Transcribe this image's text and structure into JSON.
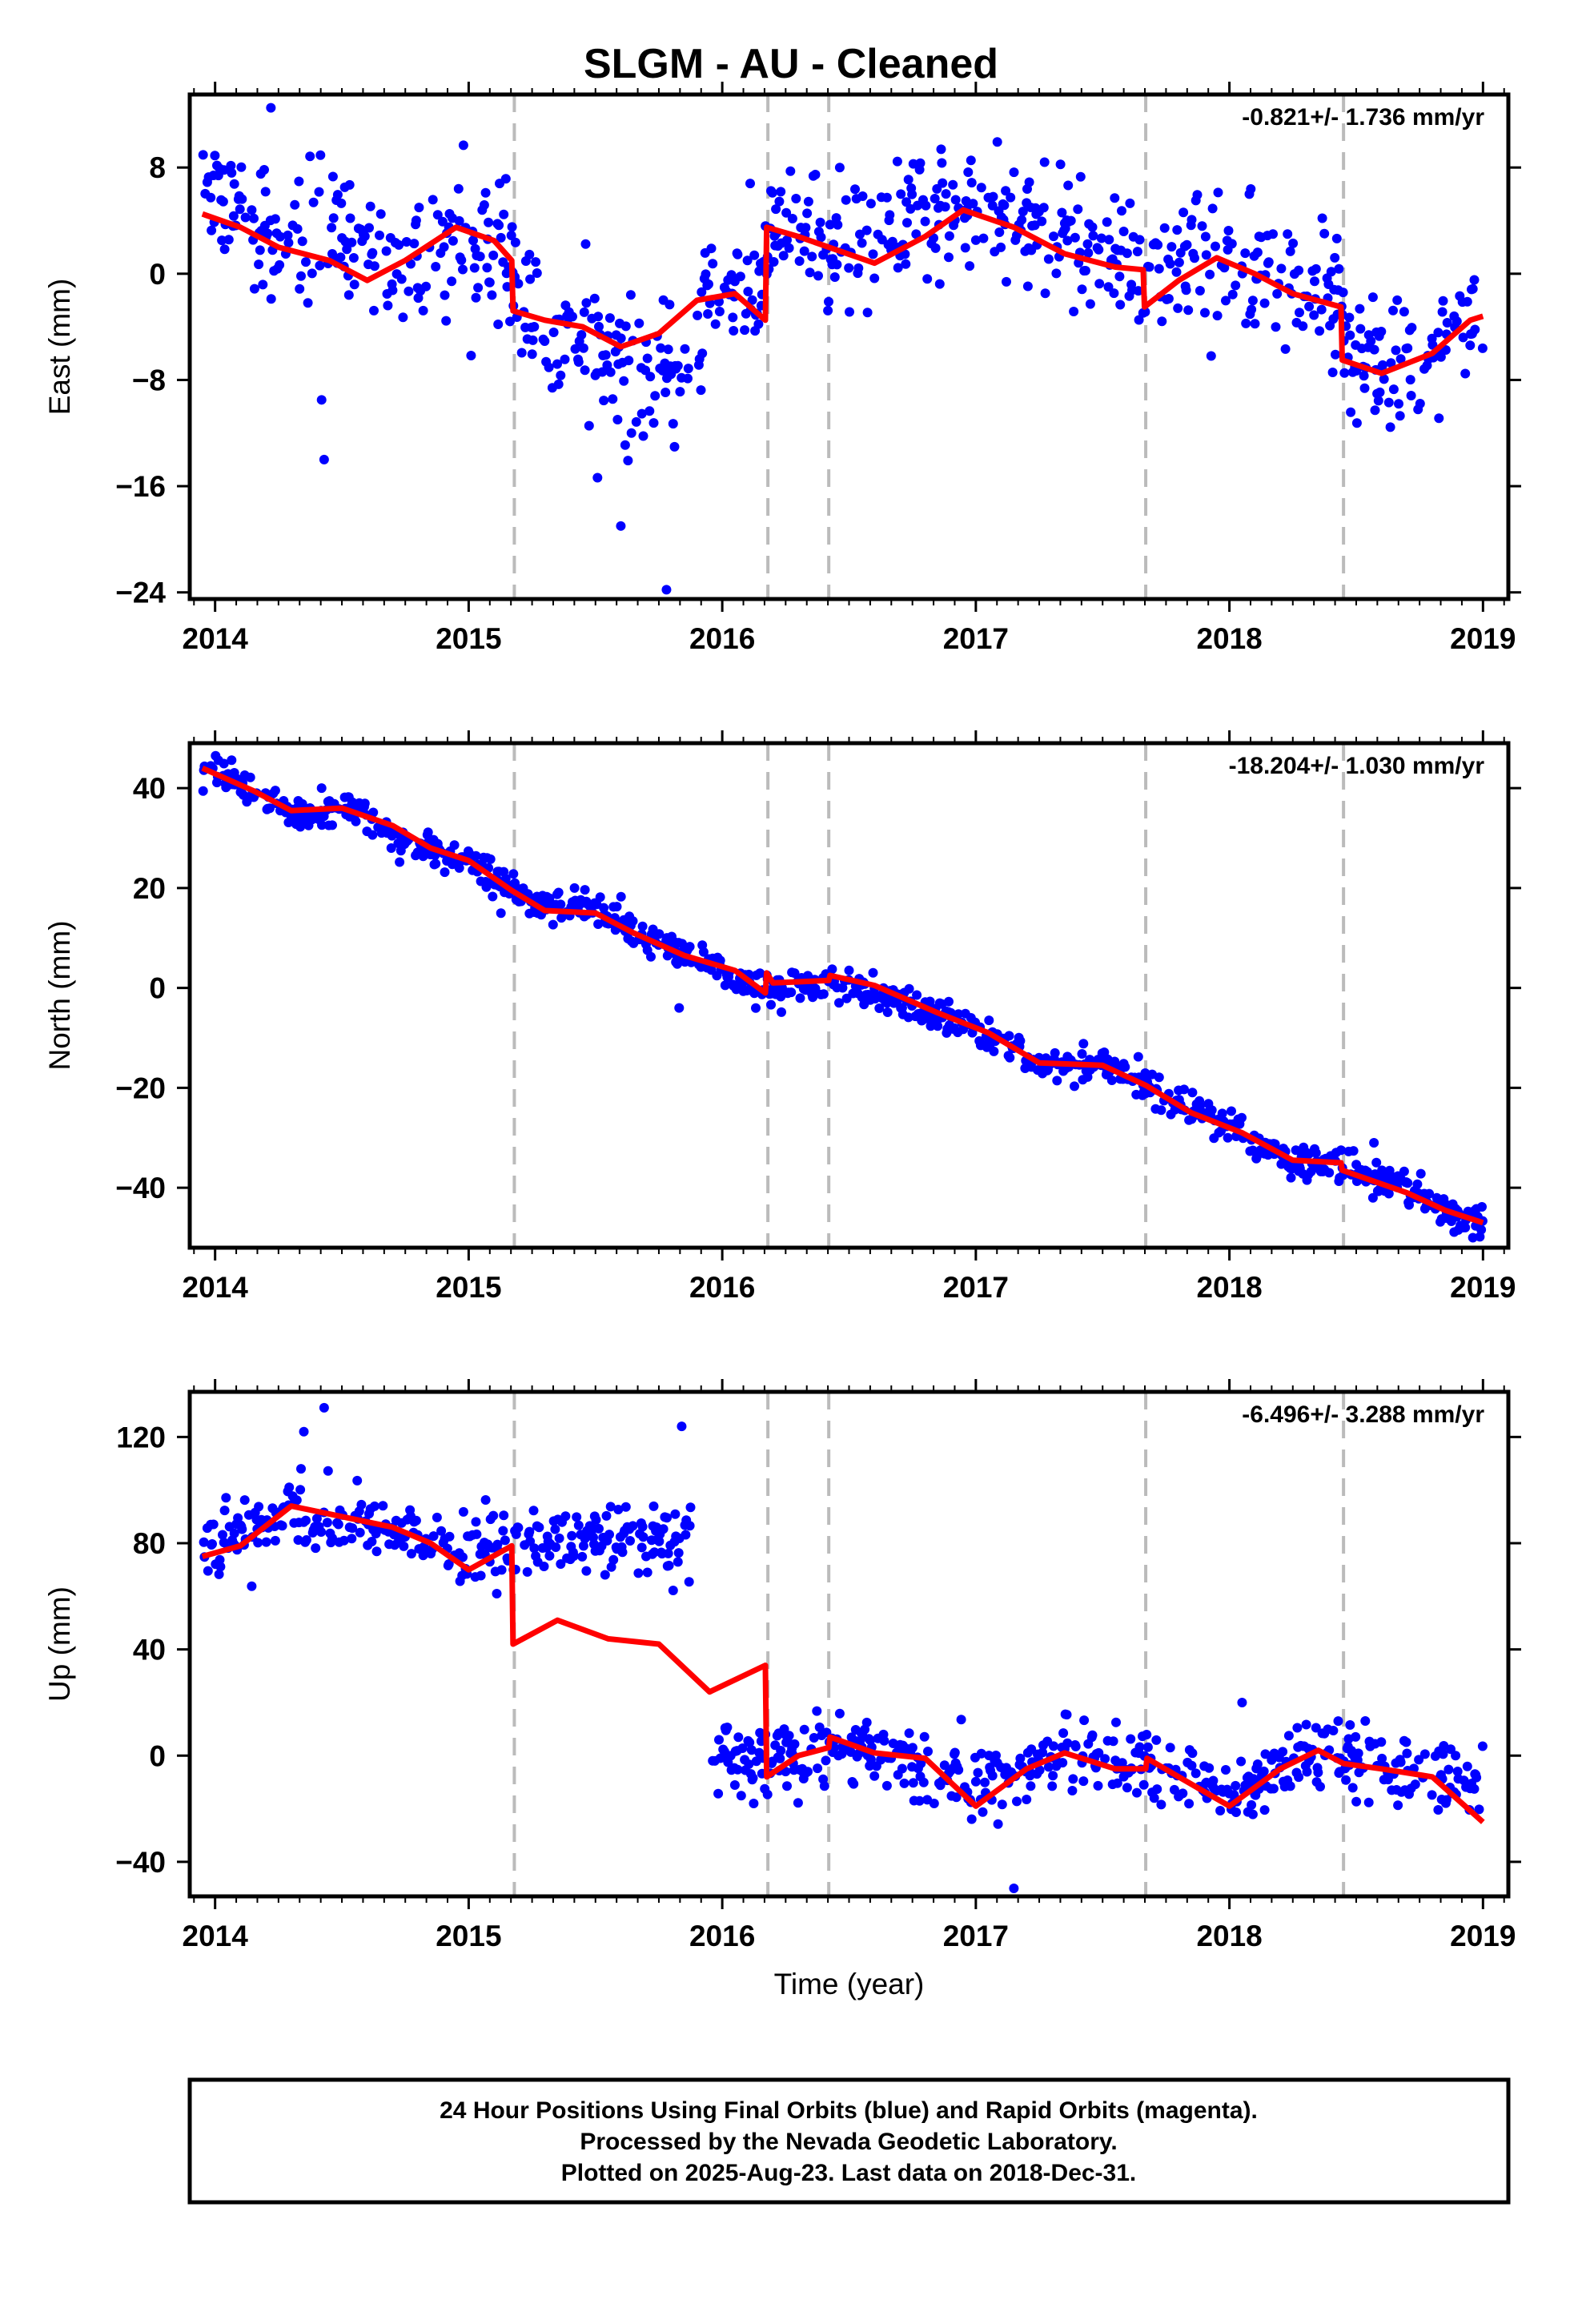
{
  "title": "SLGM  - AU - Cleaned",
  "footer": {
    "lines": [
      "24 Hour Positions Using Final Orbits (blue) and Rapid Orbits (magenta).",
      "Processed by the Nevada Geodetic Laboratory.",
      "Plotted on 2025-Aug-23. Last data on 2018-Dec-31."
    ]
  },
  "colors": {
    "data": "#0000ff",
    "model": "#ff0000",
    "breaks": "#bbbbbb",
    "frame": "#000000"
  },
  "chart_data": [
    {
      "type": "scatter",
      "component": "East",
      "ylabel": "East (mm)",
      "xlabel": "",
      "rate_label": "-0.821+/- 1.736 mm/yr",
      "xlim": [
        2013.9,
        2019.1
      ],
      "ylim": [
        -24.5,
        13.5
      ],
      "xticks": [
        2014,
        2015,
        2016,
        2017,
        2018,
        2019
      ],
      "xtick_labels": [
        "2014",
        "2015",
        "2016",
        "2017",
        "2018",
        "2019"
      ],
      "yticks": [
        -24,
        -16,
        -8,
        0,
        8
      ],
      "ytick_labels": [
        "−24",
        "−16",
        "−8",
        "0",
        "8"
      ],
      "breaks": [
        2015.18,
        2016.18,
        2016.42,
        2017.67,
        2018.45
      ],
      "data_density": 0.45,
      "series": [
        {
          "role": "observations",
          "gap_after": [
            2015.88,
            2015.95
          ],
          "trend": [
            [
              2013.95,
              6.5
            ],
            [
              2014.2,
              3.5
            ],
            [
              2014.5,
              1.5
            ],
            [
              2014.8,
              1.0
            ],
            [
              2015.0,
              3.0
            ],
            [
              2015.17,
              1.0
            ],
            [
              2015.19,
              -3.5
            ],
            [
              2015.5,
              -6.5
            ],
            [
              2015.85,
              -8.5
            ],
            [
              2015.96,
              -1.0
            ],
            [
              2016.17,
              -2.0
            ],
            [
              2016.19,
              3.5
            ],
            [
              2016.42,
              1.5
            ],
            [
              2016.9,
              5.0
            ],
            [
              2017.4,
              2.5
            ],
            [
              2017.66,
              0.5
            ],
            [
              2017.68,
              0.0
            ],
            [
              2017.95,
              1.5
            ],
            [
              2018.44,
              -2.5
            ],
            [
              2018.46,
              -6.5
            ],
            [
              2018.7,
              -6.5
            ],
            [
              2019.0,
              -3.5
            ]
          ],
          "scatter_sd": 2.6,
          "outliers": [
            [
              2014.43,
              -14.0
            ],
            [
              2014.42,
              -9.5
            ],
            [
              2015.78,
              -23.8
            ],
            [
              2015.6,
              -19.0
            ],
            [
              2014.22,
              12.5
            ]
          ]
        }
      ],
      "model": [
        [
          2013.95,
          4.5
        ],
        [
          2014.1,
          3.5
        ],
        [
          2014.25,
          2.0
        ],
        [
          2014.45,
          1.0
        ],
        [
          2014.6,
          -0.5
        ],
        [
          2014.75,
          1.0
        ],
        [
          2014.95,
          3.5
        ],
        [
          2015.1,
          2.5
        ],
        [
          2015.17,
          1.0
        ],
        [
          2015.175,
          -2.8
        ],
        [
          2015.3,
          -3.5
        ],
        [
          2015.45,
          -4.0
        ],
        [
          2015.6,
          -5.5
        ],
        [
          2015.75,
          -4.5
        ],
        [
          2015.9,
          -2.0
        ],
        [
          2016.05,
          -1.5
        ],
        [
          2016.17,
          -3.5
        ],
        [
          2016.175,
          3.5
        ],
        [
          2016.3,
          2.8
        ],
        [
          2016.42,
          2.0
        ],
        [
          2016.6,
          0.8
        ],
        [
          2016.8,
          2.8
        ],
        [
          2016.95,
          4.8
        ],
        [
          2017.15,
          3.5
        ],
        [
          2017.35,
          1.5
        ],
        [
          2017.55,
          0.5
        ],
        [
          2017.66,
          0.3
        ],
        [
          2017.665,
          -2.5
        ],
        [
          2017.8,
          -0.5
        ],
        [
          2017.95,
          1.2
        ],
        [
          2018.1,
          0.0
        ],
        [
          2018.25,
          -1.5
        ],
        [
          2018.44,
          -2.5
        ],
        [
          2018.445,
          -6.5
        ],
        [
          2018.6,
          -7.5
        ],
        [
          2018.8,
          -6.0
        ],
        [
          2018.95,
          -3.5
        ],
        [
          2019.0,
          -3.2
        ]
      ]
    },
    {
      "type": "scatter",
      "component": "North",
      "ylabel": "North (mm)",
      "xlabel": "",
      "rate_label": "-18.204+/- 1.030 mm/yr",
      "xlim": [
        2013.9,
        2019.1
      ],
      "ylim": [
        -52,
        49
      ],
      "xticks": [
        2014,
        2015,
        2016,
        2017,
        2018,
        2019
      ],
      "xtick_labels": [
        "2014",
        "2015",
        "2016",
        "2017",
        "2018",
        "2019"
      ],
      "yticks": [
        -40,
        -20,
        0,
        20,
        40
      ],
      "ytick_labels": [
        "−40",
        "−20",
        "0",
        "20",
        "40"
      ],
      "breaks": [
        2015.18,
        2016.18,
        2016.42,
        2017.67,
        2018.45
      ],
      "data_density": 0.45,
      "series": [
        {
          "role": "observations",
          "gap_after": [],
          "trend": [
            [
              2013.95,
              45.0
            ],
            [
              2014.3,
              35.0
            ],
            [
              2014.55,
              35.5
            ],
            [
              2014.8,
              28.5
            ],
            [
              2015.1,
              23.0
            ],
            [
              2015.2,
              17.0
            ],
            [
              2015.5,
              15.5
            ],
            [
              2015.7,
              10.0
            ],
            [
              2016.0,
              4.0
            ],
            [
              2016.17,
              -1.0
            ],
            [
              2016.42,
              1.5
            ],
            [
              2017.0,
              -8.0
            ],
            [
              2017.25,
              -15.5
            ],
            [
              2017.55,
              -16.0
            ],
            [
              2017.8,
              -23.0
            ],
            [
              2018.0,
              -28.0
            ],
            [
              2018.25,
              -35.0
            ],
            [
              2018.45,
              -35.5
            ],
            [
              2018.7,
              -40.0
            ],
            [
              2019.0,
              -48.0
            ]
          ],
          "scatter_sd": 1.7,
          "outliers": [
            [
              2015.83,
              -4.0
            ],
            [
              2016.5,
              3.5
            ],
            [
              2018.57,
              -31.0
            ],
            [
              2014.42,
              40.0
            ],
            [
              2016.8,
              -4.0
            ]
          ]
        }
      ],
      "model": [
        [
          2013.95,
          44.0
        ],
        [
          2014.15,
          39.5
        ],
        [
          2014.3,
          35.5
        ],
        [
          2014.5,
          36.0
        ],
        [
          2014.7,
          32.5
        ],
        [
          2014.85,
          28.0
        ],
        [
          2015.0,
          25.5
        ],
        [
          2015.17,
          19.5
        ],
        [
          2015.3,
          15.5
        ],
        [
          2015.5,
          15.0
        ],
        [
          2015.65,
          11.0
        ],
        [
          2015.85,
          6.5
        ],
        [
          2016.05,
          3.5
        ],
        [
          2016.17,
          -1.0
        ],
        [
          2016.175,
          3.0
        ],
        [
          2016.2,
          1.0
        ],
        [
          2016.42,
          1.5
        ],
        [
          2016.425,
          2.5
        ],
        [
          2016.6,
          0.5
        ],
        [
          2016.85,
          -5.0
        ],
        [
          2017.05,
          -9.0
        ],
        [
          2017.25,
          -15.0
        ],
        [
          2017.5,
          -15.5
        ],
        [
          2017.67,
          -19.5
        ],
        [
          2017.85,
          -25.0
        ],
        [
          2018.05,
          -29.0
        ],
        [
          2018.25,
          -34.5
        ],
        [
          2018.44,
          -35.0
        ],
        [
          2018.445,
          -36.5
        ],
        [
          2018.7,
          -41.0
        ],
        [
          2018.85,
          -44.5
        ],
        [
          2019.0,
          -47.0
        ]
      ]
    },
    {
      "type": "scatter",
      "component": "Up",
      "ylabel": "Up (mm)",
      "xlabel": "Time (year)",
      "rate_label": "-6.496+/- 3.288 mm/yr",
      "xlim": [
        2013.9,
        2019.1
      ],
      "ylim": [
        -53,
        137
      ],
      "xticks": [
        2014,
        2015,
        2016,
        2017,
        2018,
        2019
      ],
      "xtick_labels": [
        "2014",
        "2015",
        "2016",
        "2017",
        "2018",
        "2019"
      ],
      "yticks": [
        -40,
        0,
        40,
        80,
        120
      ],
      "ytick_labels": [
        "−40",
        "0",
        "40",
        "80",
        "120"
      ],
      "breaks": [
        2015.18,
        2016.18,
        2016.42,
        2017.67,
        2018.45
      ],
      "data_density": 0.45,
      "series": [
        {
          "role": "observations",
          "gap_after": [
            2015.88,
            2015.85
          ],
          "trend": [
            [
              2013.95,
              78.0
            ],
            [
              2014.3,
              92.0
            ],
            [
              2014.7,
              85.0
            ],
            [
              2015.0,
              75.0
            ],
            [
              2015.17,
              80.0
            ],
            [
              2015.5,
              82.0
            ],
            [
              2015.88,
              80.0
            ],
            [
              2015.89,
              0.0
            ],
            [
              2016.17,
              -2.0
            ],
            [
              2016.42,
              3.0
            ],
            [
              2016.7,
              0.0
            ],
            [
              2017.0,
              -12.0
            ],
            [
              2017.35,
              0.0
            ],
            [
              2017.67,
              -4.0
            ],
            [
              2018.0,
              -14.0
            ],
            [
              2018.3,
              0.0
            ],
            [
              2018.7,
              -5.0
            ],
            [
              2019.0,
              -12.0
            ]
          ],
          "scatter_sd": 6.5,
          "outliers": [
            [
              2014.43,
              131.0
            ],
            [
              2014.35,
              122.0
            ],
            [
              2015.84,
              124.0
            ],
            [
              2017.15,
              -50.0
            ],
            [
              2018.05,
              20.0
            ]
          ]
        }
      ],
      "model": [
        [
          2013.95,
          75.0
        ],
        [
          2014.1,
          79.0
        ],
        [
          2014.3,
          94.0
        ],
        [
          2014.5,
          90.0
        ],
        [
          2014.7,
          86.0
        ],
        [
          2014.85,
          80.0
        ],
        [
          2015.0,
          70.0
        ],
        [
          2015.17,
          79.0
        ],
        [
          2015.175,
          42.0
        ],
        [
          2015.35,
          51.0
        ],
        [
          2015.55,
          44.0
        ],
        [
          2015.75,
          42.0
        ],
        [
          2015.95,
          24.0
        ],
        [
          2016.17,
          34.0
        ],
        [
          2016.175,
          -8.0
        ],
        [
          2016.3,
          0.0
        ],
        [
          2016.42,
          3.0
        ],
        [
          2016.425,
          7.0
        ],
        [
          2016.6,
          1.0
        ],
        [
          2016.8,
          -1.0
        ],
        [
          2017.0,
          -19.0
        ],
        [
          2017.2,
          -5.0
        ],
        [
          2017.35,
          1.0
        ],
        [
          2017.55,
          -5.0
        ],
        [
          2017.67,
          -5.0
        ],
        [
          2017.675,
          -1.0
        ],
        [
          2017.8,
          -8.0
        ],
        [
          2018.0,
          -19.0
        ],
        [
          2018.2,
          -5.0
        ],
        [
          2018.35,
          2.0
        ],
        [
          2018.45,
          -3.0
        ],
        [
          2018.6,
          -5.0
        ],
        [
          2018.8,
          -8.0
        ],
        [
          2019.0,
          -25.0
        ]
      ]
    }
  ]
}
